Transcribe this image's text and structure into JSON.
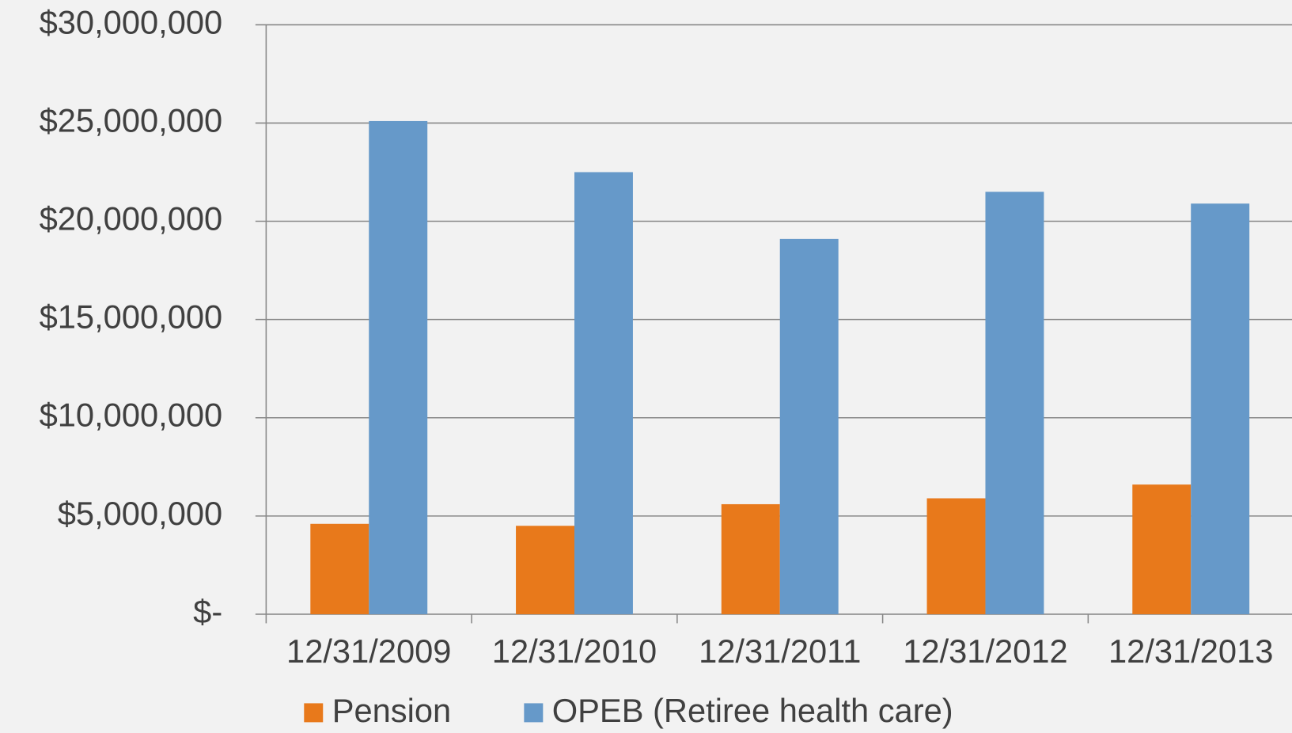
{
  "chart_data": {
    "type": "bar",
    "categories": [
      "12/31/2009",
      "12/31/2010",
      "12/31/2011",
      "12/31/2012",
      "12/31/2013"
    ],
    "series": [
      {
        "name": "Pension",
        "color": "#e8791b",
        "values": [
          4600000,
          4500000,
          5600000,
          5900000,
          6600000
        ]
      },
      {
        "name": "OPEB (Retiree health care)",
        "color": "#6699c9",
        "values": [
          25100000,
          22500000,
          19100000,
          21500000,
          20900000
        ]
      }
    ],
    "ylim": [
      0,
      30000000
    ],
    "yticks": [
      {
        "value": 0,
        "label": "$-"
      },
      {
        "value": 5000000,
        "label": "$5,000,000"
      },
      {
        "value": 10000000,
        "label": "$10,000,000"
      },
      {
        "value": 15000000,
        "label": "$15,000,000"
      },
      {
        "value": 20000000,
        "label": "$20,000,000"
      },
      {
        "value": 25000000,
        "label": "$25,000,000"
      },
      {
        "value": 30000000,
        "label": "$30,000,000"
      }
    ],
    "grid": true
  }
}
